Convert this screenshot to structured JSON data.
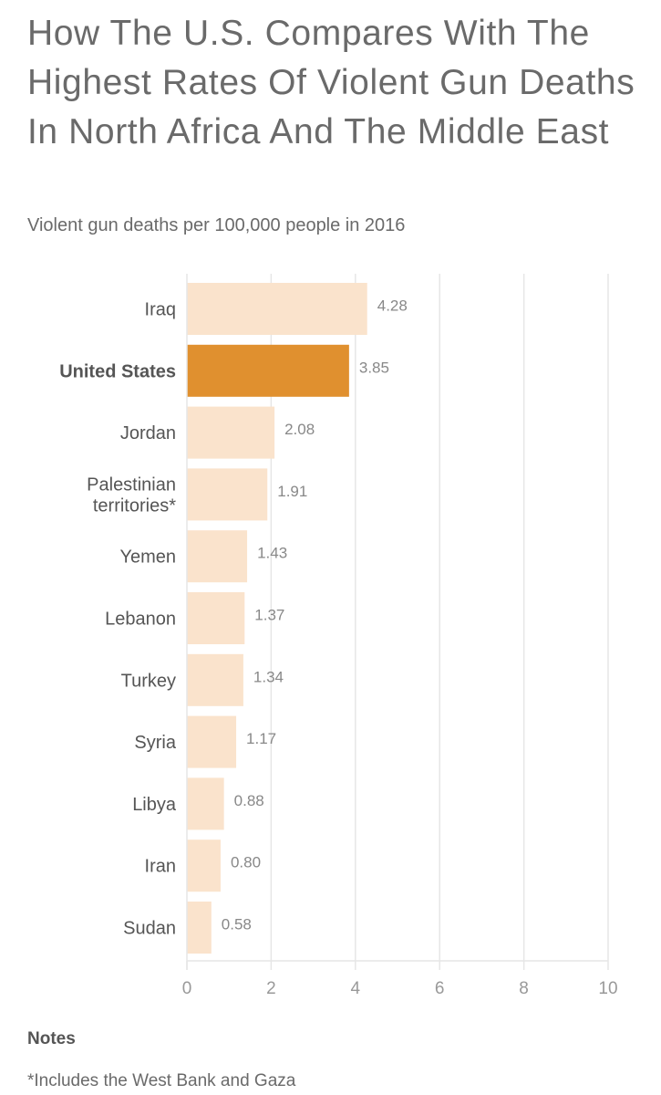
{
  "title": "How The U.S. Compares With The Highest Rates Of Violent Gun Deaths In North Africa And The Middle East",
  "subtitle": "Violent gun deaths per 100,000 people in 2016",
  "notes": {
    "heading": "Notes",
    "text": "*Includes the West Bank and Gaza"
  },
  "colors": {
    "bar": "#fae3cc",
    "highlight": "#e0902f",
    "grid": "#e6e6e6",
    "axis_text": "#999999",
    "label_text": "#555555",
    "value_text": "#888888"
  },
  "chart_data": {
    "type": "bar",
    "orientation": "horizontal",
    "title": "How The U.S. Compares With The Highest Rates Of Violent Gun Deaths In North Africa And The Middle East",
    "subtitle": "Violent gun deaths per 100,000 people in 2016",
    "xlabel": "",
    "ylabel": "",
    "xlim": [
      0,
      10
    ],
    "xticks": [
      0,
      2,
      4,
      6,
      8,
      10
    ],
    "grid": true,
    "highlight_category": "United States",
    "categories": [
      [
        "Iraq"
      ],
      [
        "United States"
      ],
      [
        "Jordan"
      ],
      [
        "Palestinian",
        "territories*"
      ],
      [
        "Yemen"
      ],
      [
        "Lebanon"
      ],
      [
        "Turkey"
      ],
      [
        "Syria"
      ],
      [
        "Libya"
      ],
      [
        "Iran"
      ],
      [
        "Sudan"
      ]
    ],
    "values": [
      4.28,
      3.85,
      2.08,
      1.91,
      1.43,
      1.37,
      1.34,
      1.17,
      0.88,
      0.8,
      0.58
    ],
    "value_labels": [
      "4.28",
      "3.85",
      "2.08",
      "1.91",
      "1.43",
      "1.37",
      "1.34",
      "1.17",
      "0.88",
      "0.80",
      "0.58"
    ]
  }
}
